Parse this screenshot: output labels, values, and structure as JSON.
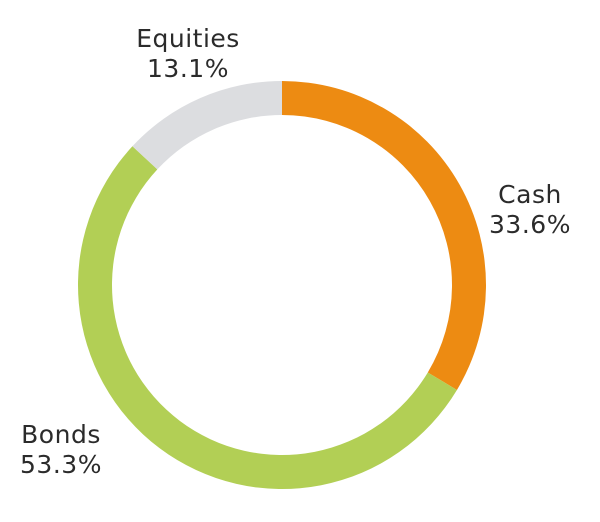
{
  "chart_data": {
    "type": "pie",
    "donut": true,
    "slices": [
      {
        "label": "Cash",
        "value": 33.6,
        "value_label": "33.6%",
        "color": "#ed8b12"
      },
      {
        "label": "Bonds",
        "value": 53.3,
        "value_label": "53.3%",
        "color": "#b2cf55"
      },
      {
        "label": "Equities",
        "value": 13.1,
        "value_label": "13.1%",
        "color": "#dcdde0"
      }
    ],
    "start": "12 o'clock",
    "direction": "clockwise",
    "legend": "none"
  }
}
